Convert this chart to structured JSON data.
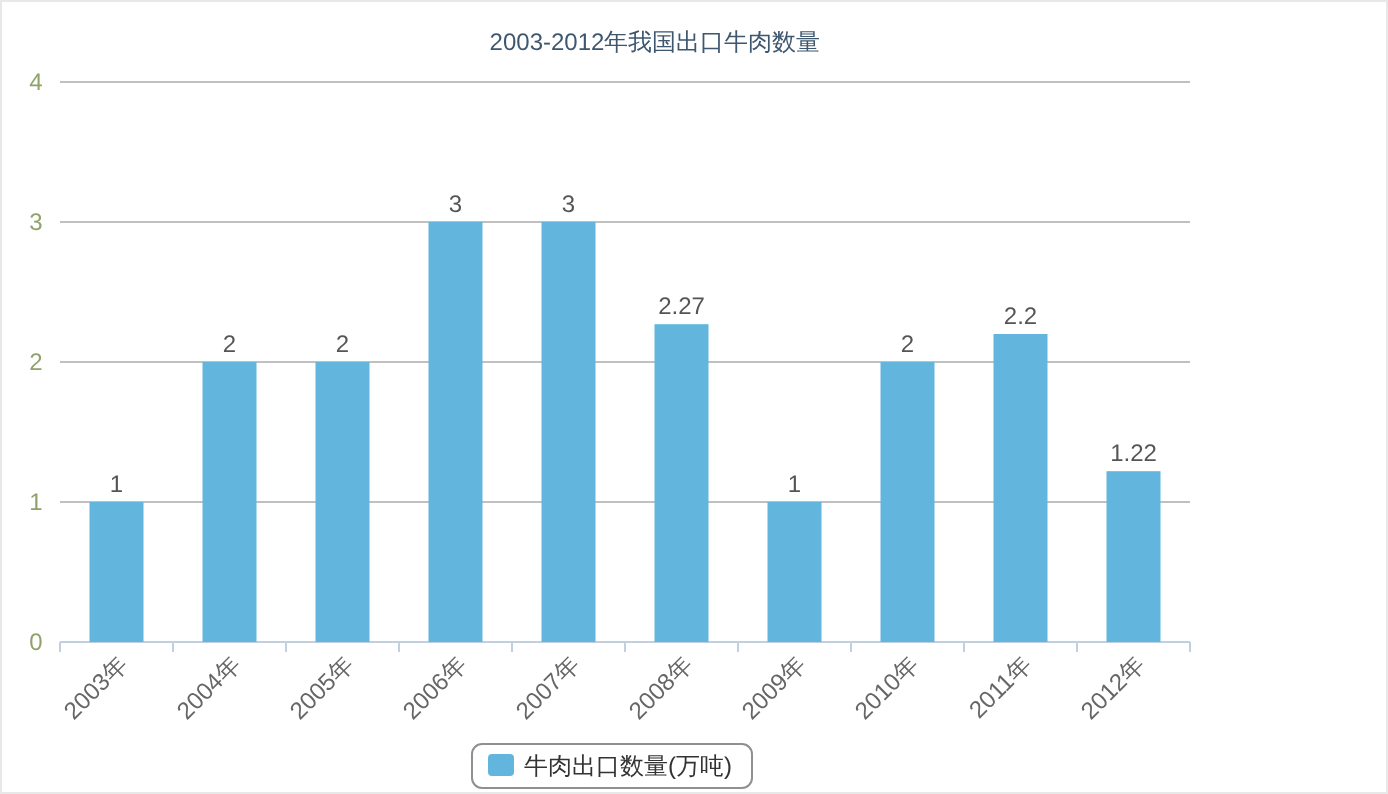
{
  "chart_data": {
    "type": "bar",
    "title": "2003-2012年我国出口牛肉数量",
    "categories": [
      "2003年",
      "2004年",
      "2005年",
      "2006年",
      "2007年",
      "2008年",
      "2009年",
      "2010年",
      "2011年",
      "2012年"
    ],
    "series": [
      {
        "name": "牛肉出口数量(万吨)",
        "color": "#62b5dc",
        "values": [
          1,
          2,
          2,
          3,
          3,
          2.27,
          1,
          2,
          2.2,
          1.22
        ]
      }
    ],
    "ylim": [
      0,
      4
    ],
    "yticks": [
      0,
      1,
      2,
      3,
      4
    ],
    "grid": "y",
    "legend": "bottom",
    "data_labels": true
  }
}
